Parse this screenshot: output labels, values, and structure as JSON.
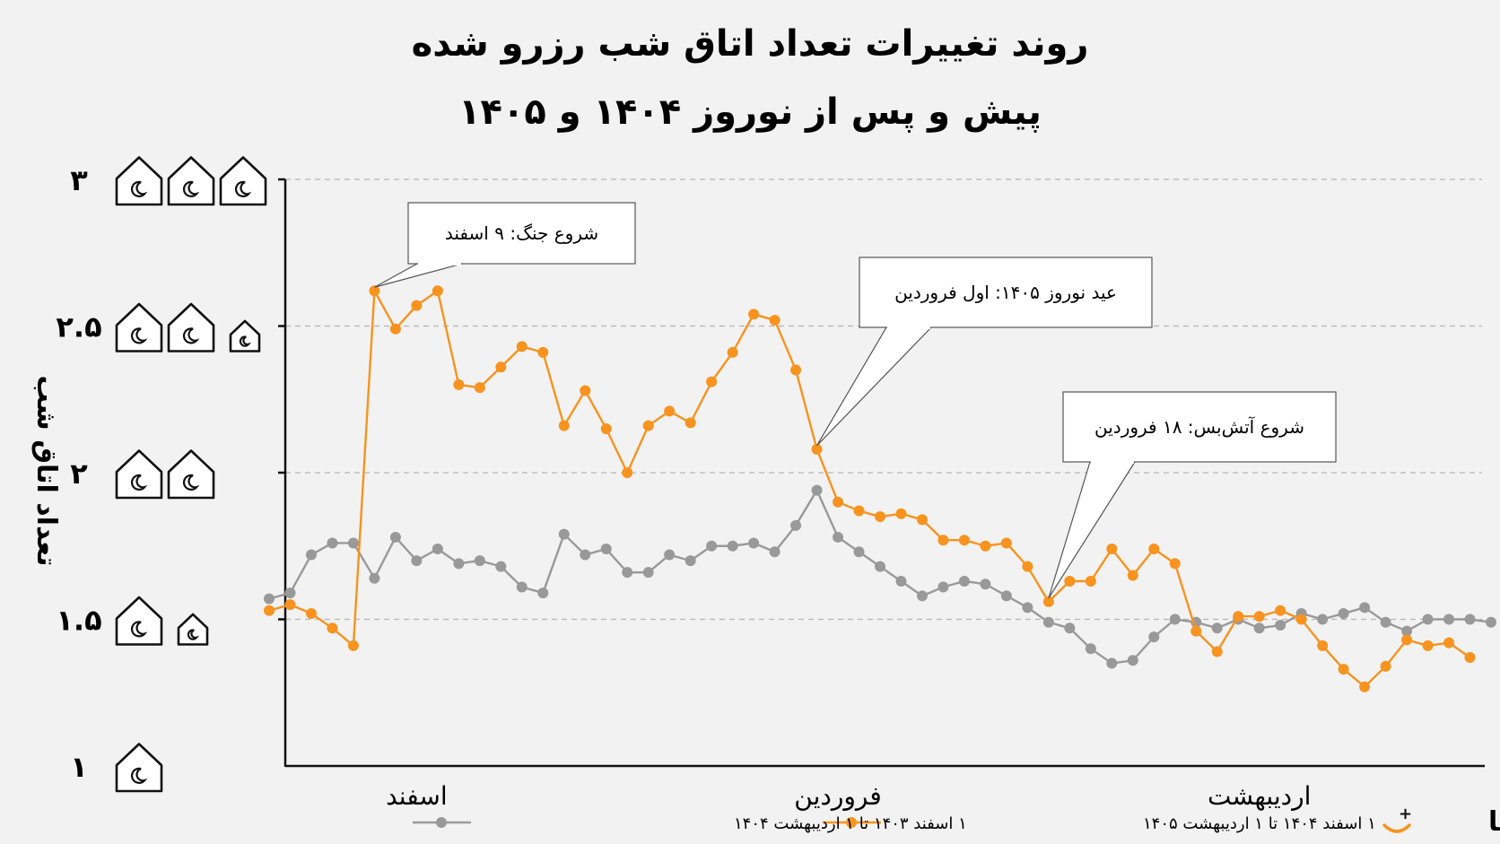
{
  "chart_data": {
    "type": "line",
    "title": [
      "روند تغییرات تعداد اتاق شب رزرو شده",
      "پیش و پس از نوروز ۱۴۰۴ و ۱۴۰۵"
    ],
    "ylabel": "تعداد اتاق شب",
    "xlabel": "",
    "ylim": [
      1,
      3
    ],
    "y_ticks": [
      {
        "value": 1,
        "label": "۱"
      },
      {
        "value": 1.5,
        "label": "۱.۵"
      },
      {
        "value": 2,
        "label": "۲"
      },
      {
        "value": 2.5,
        "label": "۲.۵"
      },
      {
        "value": 3,
        "label": "۳"
      }
    ],
    "y_tick_icons": {
      "1": [
        1
      ],
      "1.5": [
        1,
        0.5
      ],
      "2": [
        1,
        1
      ],
      "2.5": [
        1,
        1,
        0.5
      ],
      "3": [
        1,
        1,
        1
      ]
    },
    "grid": true,
    "x_tick_labels": [
      {
        "day": 7,
        "label": "اسفند"
      },
      {
        "day": 27,
        "label": "فروردین"
      },
      {
        "day": 47,
        "label": "اردیبهشت"
      }
    ],
    "days": 59,
    "series": [
      {
        "name": "۱ اسفند ۱۴۰۴ تا ۱ اردیبهشت ۱۴۰۵",
        "color": "#f7931e",
        "values": [
          1.53,
          1.55,
          1.52,
          1.47,
          1.41,
          2.62,
          2.49,
          2.57,
          2.62,
          2.3,
          2.29,
          2.36,
          2.43,
          2.41,
          2.16,
          2.28,
          2.15,
          2.0,
          2.16,
          2.21,
          2.17,
          2.31,
          2.41,
          2.54,
          2.52,
          2.35,
          2.08,
          1.9,
          1.87,
          1.85,
          1.86,
          1.84,
          1.77,
          1.77,
          1.75,
          1.76,
          1.68,
          1.56,
          1.63,
          1.63,
          1.74,
          1.65,
          1.74,
          1.69,
          1.46,
          1.39,
          1.51,
          1.51,
          1.53,
          1.5,
          1.41,
          1.33,
          1.27,
          1.34,
          1.43,
          1.41,
          1.42,
          1.37
        ]
      },
      {
        "name": "۱ اسفند ۱۴۰۳ تا ۱ اردیبهشت ۱۴۰۴",
        "color": "#999999",
        "values": [
          1.57,
          1.59,
          1.72,
          1.76,
          1.76,
          1.64,
          1.78,
          1.7,
          1.74,
          1.69,
          1.7,
          1.68,
          1.61,
          1.59,
          1.79,
          1.72,
          1.74,
          1.66,
          1.66,
          1.72,
          1.7,
          1.75,
          1.75,
          1.76,
          1.73,
          1.82,
          1.94,
          1.78,
          1.73,
          1.68,
          1.63,
          1.58,
          1.61,
          1.63,
          1.62,
          1.58,
          1.54,
          1.49,
          1.47,
          1.4,
          1.35,
          1.36,
          1.44,
          1.5,
          1.49,
          1.47,
          1.5,
          1.47,
          1.48,
          1.52,
          1.5,
          1.52,
          1.54,
          1.49,
          1.46,
          1.5,
          1.5,
          1.5,
          1.49
        ]
      }
    ],
    "annotations": [
      {
        "text": "شروع جنگ: ۹ اسفند",
        "series": 0,
        "day": 5
      },
      {
        "text": "عید نوروز ۱۴۰۵: اول فروردین",
        "series": 0,
        "day": 26
      },
      {
        "text": "شروع آتش‌بس: ۱۸ فروردین",
        "series": 0,
        "day": 37
      }
    ]
  },
  "brand": {
    "name": "جاباما",
    "accent": "#f7931e"
  }
}
